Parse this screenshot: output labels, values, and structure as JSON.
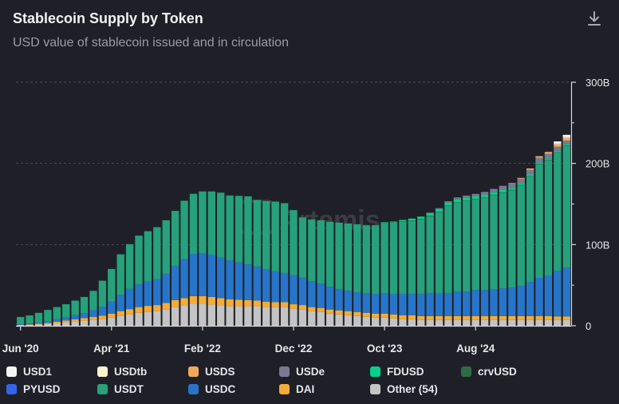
{
  "header": {
    "title": "Stablecoin Supply by Token",
    "subtitle": "USD value of stablecoin issued and in circulation",
    "download_icon": "download-icon"
  },
  "watermark": "Artemis",
  "colors": {
    "background": "#1f2027",
    "grid": "#4a4b52",
    "axis_text": "#e6e6ea"
  },
  "chart_data": {
    "type": "bar",
    "stacked": true,
    "title": "Stablecoin Supply by Token",
    "subtitle": "USD value of stablecoin issued and in circulation",
    "y_unit": "B",
    "ylim": [
      0,
      300
    ],
    "y_ticks": [
      "0",
      "100B",
      "200B",
      "300B"
    ],
    "y_tick_values": [
      0,
      100,
      200,
      300
    ],
    "x_tick_labels": [
      "Jun '20",
      "Apr '21",
      "Feb '22",
      "Dec '22",
      "Oct '23",
      "Aug '24"
    ],
    "x_tick_indices": [
      0,
      10,
      20,
      30,
      40,
      50
    ],
    "grid": true,
    "legend_position": "bottom",
    "series": [
      {
        "name": "USD1",
        "color": "#f5f5f5",
        "values": [
          0,
          0,
          0,
          0,
          0,
          0,
          0,
          0,
          0,
          0,
          0,
          0,
          0,
          0,
          0,
          0,
          0,
          0,
          0,
          0,
          0,
          0,
          0,
          0,
          0,
          0,
          0,
          0,
          0,
          0,
          0,
          0,
          0,
          0,
          0,
          0,
          0,
          0,
          0,
          0,
          0,
          0,
          0,
          0,
          0,
          0,
          0,
          0,
          0,
          0,
          0,
          0,
          0,
          0,
          0,
          0,
          0,
          0,
          0,
          2.2,
          2.2
        ]
      },
      {
        "name": "USDtb",
        "color": "#fbf3d0",
        "values": [
          0,
          0,
          0,
          0,
          0,
          0,
          0,
          0,
          0,
          0,
          0,
          0,
          0,
          0,
          0,
          0,
          0,
          0,
          0,
          0,
          0,
          0,
          0,
          0,
          0,
          0,
          0,
          0,
          0,
          0,
          0,
          0,
          0,
          0,
          0,
          0,
          0,
          0,
          0,
          0,
          0,
          0,
          0,
          0,
          0,
          0,
          0,
          0,
          0,
          0,
          0,
          0,
          0,
          0,
          0,
          0,
          0,
          0,
          0,
          1.4,
          1.4
        ]
      },
      {
        "name": "USDS",
        "color": "#f0a95b",
        "values": [
          0,
          0,
          0,
          0,
          0,
          0,
          0,
          0,
          0,
          0,
          0,
          0,
          0,
          0,
          0,
          0,
          0,
          0,
          0,
          0,
          0,
          0,
          0,
          0,
          0,
          0,
          0,
          0,
          0,
          0,
          0,
          0,
          0,
          0,
          0,
          0,
          0,
          0,
          0,
          0,
          0,
          0,
          0,
          0,
          0,
          0,
          0,
          0,
          0,
          0,
          0,
          0,
          0,
          0,
          0.5,
          1.0,
          1.6,
          2.0,
          2.5,
          3.0,
          3.5
        ]
      },
      {
        "name": "USDe",
        "color": "#7a7991",
        "values": [
          0,
          0,
          0,
          0,
          0,
          0,
          0,
          0,
          0,
          0,
          0,
          0,
          0,
          0,
          0,
          0,
          0,
          0,
          0,
          0,
          0,
          0,
          0,
          0,
          0,
          0,
          0,
          0,
          0,
          0,
          0,
          0,
          0,
          0,
          0,
          0,
          0,
          0,
          0,
          0,
          0,
          0,
          0,
          0,
          0,
          0.3,
          1.0,
          1.7,
          2.5,
          3.0,
          3.0,
          3.5,
          4.2,
          5.2,
          5.5,
          5.5,
          5.8,
          5.6,
          5.5,
          5.0,
          4.7
        ]
      },
      {
        "name": "FDUSD",
        "color": "#05d18a",
        "values": [
          0,
          0,
          0,
          0,
          0,
          0,
          0,
          0,
          0,
          0,
          0,
          0,
          0,
          0,
          0,
          0,
          0,
          0,
          0,
          0,
          0,
          0,
          0,
          0,
          0,
          0,
          0,
          0,
          0,
          0,
          0,
          0,
          0,
          0,
          0,
          0,
          0,
          0,
          0,
          0,
          0.3,
          1.0,
          1.8,
          2.5,
          3.0,
          3.5,
          3.5,
          3.3,
          3.2,
          3.0,
          3.0,
          3.0,
          3.0,
          2.8,
          2.5,
          2.3,
          2.0,
          1.9,
          1.8,
          1.6,
          1.5
        ]
      },
      {
        "name": "crvUSD",
        "color": "#2f6b45",
        "values": [
          0,
          0,
          0,
          0,
          0,
          0,
          0,
          0,
          0,
          0,
          0,
          0,
          0,
          0,
          0,
          0,
          0,
          0,
          0,
          0,
          0,
          0,
          0,
          0,
          0,
          0,
          0,
          0,
          0,
          0,
          0,
          0,
          0,
          0,
          0,
          0,
          0,
          0,
          0.1,
          0.2,
          0.3,
          0.4,
          0.5,
          0.5,
          0.5,
          0.5,
          0.4,
          0.4,
          0.4,
          0.4,
          0.4,
          0.4,
          0.4,
          0.4,
          0.4,
          0.4,
          0.4,
          0.4,
          0.4,
          0.4,
          0.4
        ]
      },
      {
        "name": "PYUSD",
        "color": "#3564e8",
        "values": [
          0,
          0,
          0,
          0,
          0,
          0,
          0,
          0,
          0,
          0,
          0,
          0,
          0,
          0,
          0,
          0,
          0,
          0,
          0,
          0,
          0,
          0,
          0,
          0,
          0,
          0,
          0,
          0,
          0,
          0,
          0,
          0,
          0,
          0,
          0,
          0,
          0,
          0,
          0,
          0,
          0,
          0,
          0,
          0,
          0,
          0,
          0,
          0,
          0,
          0,
          0,
          0,
          0,
          0,
          0,
          0,
          0,
          0,
          0,
          0,
          0
        ]
      },
      {
        "name": "USDT",
        "color": "#26a17b",
        "values": [
          9,
          10,
          12,
          14,
          15,
          16,
          18,
          20,
          24,
          32,
          40,
          50,
          55,
          60,
          62,
          64,
          66,
          68,
          72,
          74,
          76,
          78,
          80,
          80,
          82,
          84,
          82,
          84,
          86,
          86,
          80,
          74,
          76,
          78,
          80,
          82,
          83,
          84,
          84,
          85,
          87,
          88,
          89,
          90,
          92,
          95,
          100,
          108,
          110,
          112,
          112,
          114,
          116,
          118,
          120,
          124,
          130,
          140,
          142,
          146,
          150
        ]
      },
      {
        "name": "USDC",
        "color": "#2775ca",
        "values": [
          0.8,
          1,
          1.4,
          2,
          3,
          4,
          5,
          6,
          8,
          11,
          15,
          20,
          25,
          28,
          30,
          32,
          36,
          42,
          48,
          52,
          53,
          52,
          50,
          48,
          46,
          44,
          42,
          40,
          38,
          36,
          36,
          34,
          32,
          30,
          28,
          26,
          25,
          24,
          24,
          24,
          25,
          25,
          26,
          26,
          27,
          28,
          28,
          28,
          30,
          30,
          32,
          32,
          33,
          34,
          35,
          37,
          42,
          47,
          50,
          56,
          60
        ]
      },
      {
        "name": "DAI",
        "color": "#f5ac37",
        "values": [
          0.5,
          0.7,
          1,
          1.5,
          2,
          2.5,
          3,
          3.5,
          4,
          4.5,
          5,
          6,
          6.5,
          7,
          7.5,
          7.5,
          8,
          8.5,
          9,
          9.5,
          9.5,
          9.5,
          9,
          8.5,
          8,
          7.5,
          7,
          6.5,
          6,
          6,
          5.5,
          5.5,
          5,
          5,
          5,
          5,
          5,
          5,
          5,
          5,
          5,
          5,
          5,
          5,
          5,
          5,
          5,
          5,
          5,
          5,
          5,
          5,
          5,
          5,
          5,
          5,
          5,
          5,
          5,
          4.5,
          4.5
        ]
      },
      {
        "name": "Other (54)",
        "color": "#c4c4c4",
        "values": [
          0.5,
          1,
          1.5,
          2,
          3,
          4,
          5,
          6,
          7,
          8,
          10,
          12,
          14,
          16,
          17,
          18,
          20,
          23,
          25,
          27,
          27,
          26,
          25,
          24,
          24,
          24,
          24,
          23,
          23,
          23,
          21,
          20,
          18,
          17,
          15,
          14,
          13,
          12,
          11,
          10,
          10,
          9,
          8,
          8,
          7,
          7,
          7,
          7,
          7,
          7,
          7,
          7,
          7,
          7,
          7,
          7,
          7,
          7,
          7,
          7,
          7
        ]
      }
    ]
  },
  "legend": {
    "items": [
      {
        "label": "USD1",
        "color": "#f5f5f5"
      },
      {
        "label": "USDtb",
        "color": "#fbf3d0"
      },
      {
        "label": "USDS",
        "color": "#f0a95b"
      },
      {
        "label": "USDe",
        "color": "#7a7991"
      },
      {
        "label": "FDUSD",
        "color": "#05d18a"
      },
      {
        "label": "crvUSD",
        "color": "#2f6b45"
      },
      {
        "label": "PYUSD",
        "color": "#3564e8"
      },
      {
        "label": "USDT",
        "color": "#26a17b"
      },
      {
        "label": "USDC",
        "color": "#2775ca"
      },
      {
        "label": "DAI",
        "color": "#f5ac37"
      },
      {
        "label": "Other (54)",
        "color": "#c4c4c4"
      }
    ]
  }
}
